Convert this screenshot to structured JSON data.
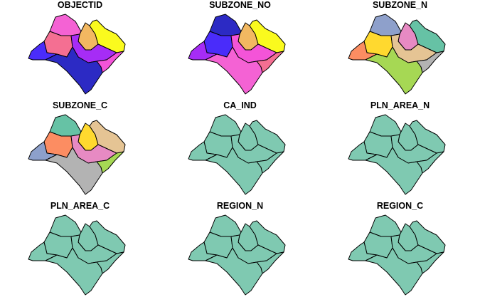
{
  "figure": {
    "panels": [
      {
        "title": "OBJECTID",
        "fills": [
          "#F462D4",
          "#F46F92",
          "#F2B861",
          "#FAFA1E",
          "#4A2CFA",
          "#A62CF6",
          "#F454D8",
          "#2C2AC4"
        ]
      },
      {
        "title": "SUBZONE_NO",
        "fills": [
          "#2C2AC4",
          "#4A2CFA",
          "#F2B861",
          "#FAFA1E",
          "#A62CF6",
          "#F454D8",
          "#F46F92",
          "#F462D4"
        ]
      },
      {
        "title": "SUBZONE_N",
        "fills": [
          "#8EA0CB",
          "#FFD92F",
          "#E78AC3",
          "#66C2A5",
          "#FC8D62",
          "#E5C494",
          "#B3B3B3",
          "#A6D854"
        ]
      },
      {
        "title": "SUBZONE_C",
        "fills": [
          "#66C2A5",
          "#FC8D62",
          "#FFD92F",
          "#E5C494",
          "#8DA0CB",
          "#E78AC3",
          "#A6D854",
          "#B3B3B3"
        ]
      },
      {
        "title": "CA_IND",
        "fills": [
          "#7FC9B1",
          "#7FC9B1",
          "#7FC9B1",
          "#7FC9B1",
          "#7FC9B1",
          "#7FC9B1",
          "#7FC9B1",
          "#7FC9B1"
        ]
      },
      {
        "title": "PLN_AREA_N",
        "fills": [
          "#7FC9B1",
          "#7FC9B1",
          "#7FC9B1",
          "#7FC9B1",
          "#7FC9B1",
          "#7FC9B1",
          "#7FC9B1",
          "#7FC9B1"
        ]
      },
      {
        "title": "PLN_AREA_C",
        "fills": [
          "#7FC9B1",
          "#7FC9B1",
          "#7FC9B1",
          "#7FC9B1",
          "#7FC9B1",
          "#7FC9B1",
          "#7FC9B1",
          "#7FC9B1"
        ]
      },
      {
        "title": "REGION_N",
        "fills": [
          "#7FC9B1",
          "#7FC9B1",
          "#7FC9B1",
          "#7FC9B1",
          "#7FC9B1",
          "#7FC9B1",
          "#7FC9B1",
          "#7FC9B1"
        ]
      },
      {
        "title": "REGION_C",
        "fills": [
          "#7FC9B1",
          "#7FC9B1",
          "#7FC9B1",
          "#7FC9B1",
          "#7FC9B1",
          "#7FC9B1",
          "#7FC9B1",
          "#7FC9B1"
        ]
      }
    ]
  }
}
